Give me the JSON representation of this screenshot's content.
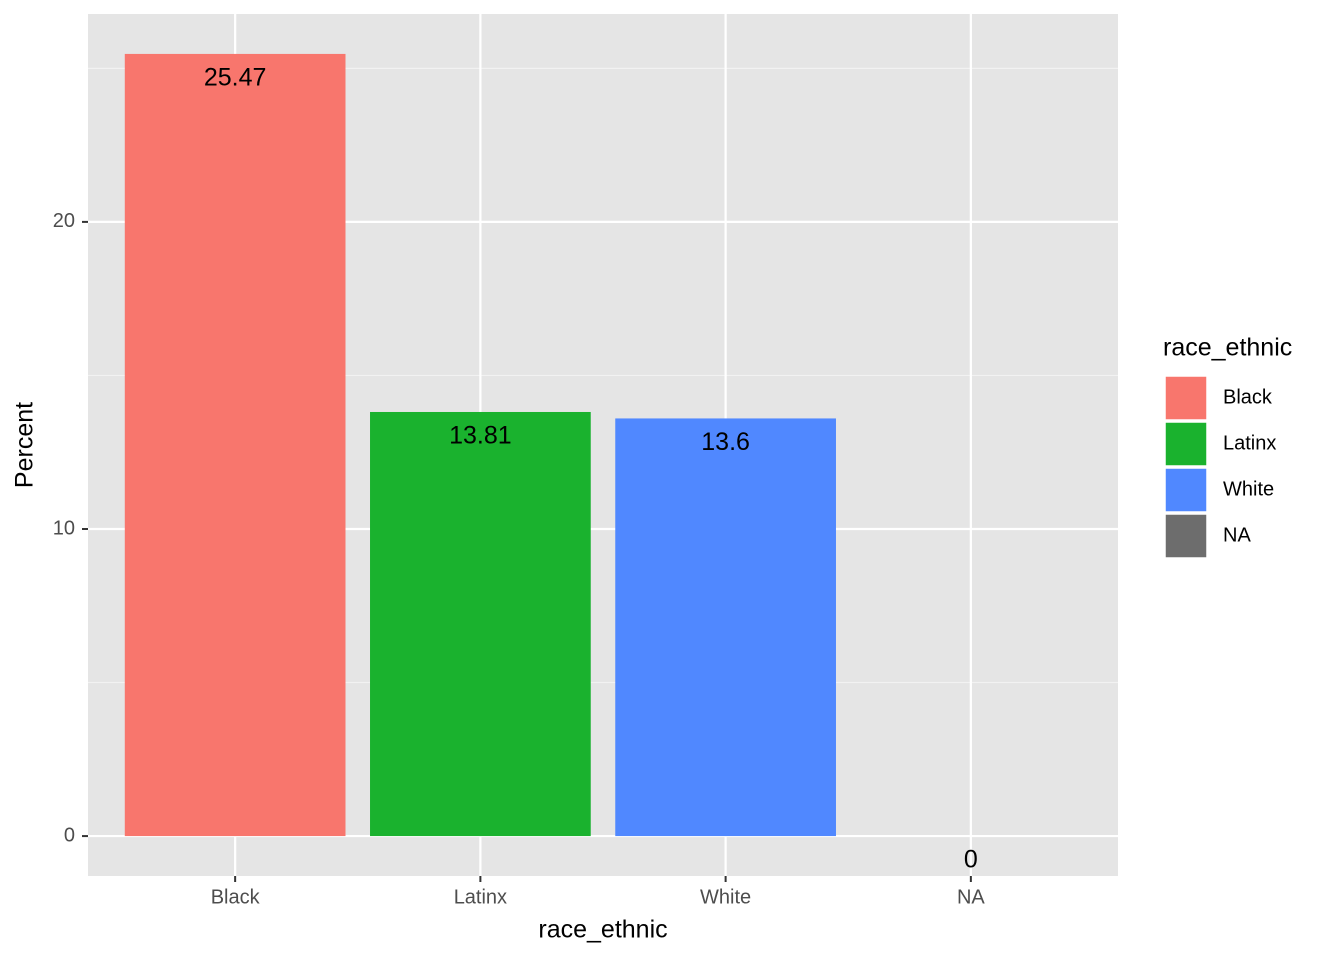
{
  "chart_data": {
    "type": "bar",
    "categories": [
      "Black",
      "Latinx",
      "White",
      "NA"
    ],
    "values": [
      25.47,
      13.81,
      13.6,
      0
    ],
    "colors": [
      "#f8766d",
      "#1ab22e",
      "#5088ff",
      "#6d6d6d"
    ],
    "x_label": "race_ethnic",
    "y_label": "Percent",
    "legend_title": "race_ethnic",
    "legend_position": "right",
    "ylim": [
      -1.3,
      26.77
    ],
    "yticks": [
      0,
      10,
      20
    ],
    "minor_yticks": [
      5,
      15,
      25
    ],
    "grid": true
  }
}
